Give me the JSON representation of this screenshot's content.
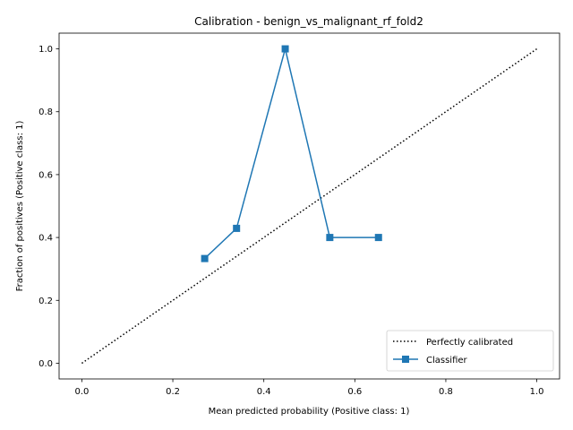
{
  "chart_data": {
    "type": "line",
    "title": "Calibration - benign_vs_malignant_rf_fold2",
    "xlabel": "Mean predicted probability (Positive class: 1)",
    "ylabel": "Fraction of positives (Positive class: 1)",
    "xlim": [
      -0.05,
      1.05
    ],
    "ylim": [
      -0.05,
      1.05
    ],
    "xticks": [
      0.0,
      0.2,
      0.4,
      0.6,
      0.8,
      1.0
    ],
    "yticks": [
      0.0,
      0.2,
      0.4,
      0.6,
      0.8,
      1.0
    ],
    "tick_labels_x": [
      "0.0",
      "0.2",
      "0.4",
      "0.6",
      "0.8",
      "1.0"
    ],
    "tick_labels_y": [
      "0.0",
      "0.2",
      "0.4",
      "0.6",
      "0.8",
      "1.0"
    ],
    "grid": false,
    "legend_position": "bottom-right",
    "series": [
      {
        "name": "Perfectly calibrated",
        "style": "dotted",
        "color": "#000000",
        "x": [
          0.0,
          1.0
        ],
        "y": [
          0.0,
          1.0
        ]
      },
      {
        "name": "Classifier",
        "style": "solid",
        "marker": "square",
        "color": "#1f77b4",
        "x": [
          0.27,
          0.34,
          0.447,
          0.545,
          0.652
        ],
        "y": [
          0.333,
          0.429,
          1.0,
          0.4,
          0.4
        ]
      }
    ]
  }
}
